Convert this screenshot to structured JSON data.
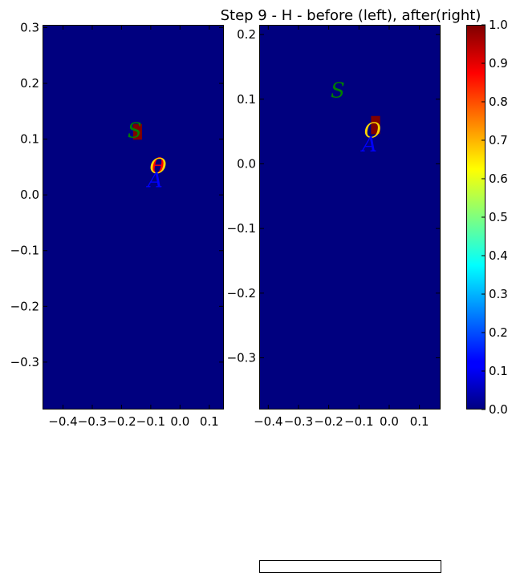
{
  "title": "Step 9 - H - before (left), after(right)",
  "colors": {
    "background": "#00007f",
    "marker": "#7f0000",
    "label_S": "#007f00",
    "label_O": "#ffd700",
    "label_A": "#0000ff"
  },
  "chart_data": [
    {
      "type": "heatmap",
      "panel": "left",
      "xlim": [
        -0.47,
        0.15
      ],
      "ylim": [
        -0.385,
        0.305
      ],
      "xticks": [
        -0.4,
        -0.3,
        -0.2,
        -0.1,
        0.0,
        0.1
      ],
      "xtick_labels": [
        "−0.4",
        "−0.3",
        "−0.2",
        "−0.1",
        "0.0",
        "0.1"
      ],
      "yticks": [
        -0.3,
        -0.2,
        -0.1,
        0.0,
        0.1,
        0.2,
        0.3
      ],
      "ytick_labels": [
        "−0.3",
        "−0.2",
        "−0.1",
        "0.0",
        "0.1",
        "0.2",
        "0.3"
      ],
      "background_value": 0.0,
      "cells": [
        {
          "x": -0.145,
          "y": 0.113,
          "w": 0.03,
          "h": 0.028,
          "value": 1.0
        }
      ],
      "labels": [
        {
          "text": "S",
          "x": -0.155,
          "y": 0.103,
          "color": "#007f00"
        },
        {
          "text": "θ",
          "x": -0.075,
          "y": 0.039,
          "color": "#ff0000"
        },
        {
          "text": "O",
          "x": -0.075,
          "y": 0.039,
          "color": "#ffd700"
        },
        {
          "text": "A",
          "x": -0.085,
          "y": 0.014,
          "color": "#0000ff"
        }
      ]
    },
    {
      "type": "heatmap",
      "panel": "right",
      "xlim": [
        -0.43,
        0.17
      ],
      "ylim": [
        -0.38,
        0.215
      ],
      "xticks": [
        -0.4,
        -0.3,
        -0.2,
        -0.1,
        0.0,
        0.1
      ],
      "xtick_labels": [
        "−0.4",
        "−0.3",
        "−0.2",
        "−0.1",
        "0.0",
        "0.1"
      ],
      "yticks": [
        -0.3,
        -0.2,
        -0.1,
        0.0,
        0.1,
        0.2
      ],
      "ytick_labels": [
        "−0.3",
        "−0.2",
        "−0.1",
        "0.0",
        "0.1",
        "0.2"
      ],
      "background_value": 0.0,
      "cells": [
        {
          "x": -0.045,
          "y": 0.06,
          "w": 0.03,
          "h": 0.028,
          "value": 1.0
        }
      ],
      "labels": [
        {
          "text": "S",
          "x": -0.17,
          "y": 0.103,
          "color": "#007f00"
        },
        {
          "text": "O",
          "x": -0.055,
          "y": 0.041,
          "color": "#ffd700"
        },
        {
          "text": "A",
          "x": -0.065,
          "y": 0.019,
          "color": "#0000ff"
        }
      ]
    },
    {
      "type": "colorbar",
      "ylim": [
        0.0,
        1.0
      ],
      "ticks": [
        0.0,
        0.1,
        0.2,
        0.3,
        0.4,
        0.5,
        0.6,
        0.7,
        0.8,
        0.9,
        1.0
      ],
      "tick_labels": [
        "0.0",
        "0.1",
        "0.2",
        "0.3",
        "0.4",
        "0.5",
        "0.6",
        "0.7",
        "0.8",
        "0.9",
        "1.0"
      ],
      "colormap": "jet"
    }
  ]
}
